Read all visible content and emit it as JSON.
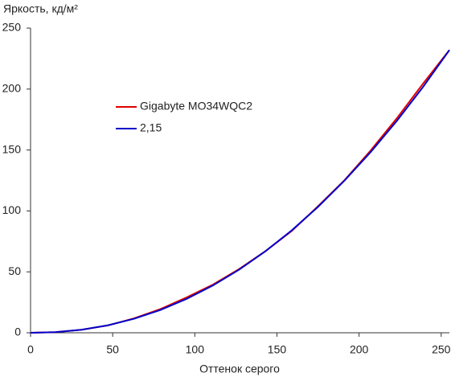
{
  "chart_data": {
    "type": "line",
    "xlabel": "Оттенок серого",
    "ylabel": "Яркость, кд/м²",
    "x": [
      0,
      15,
      31,
      47,
      63,
      79,
      95,
      111,
      127,
      143,
      159,
      175,
      191,
      207,
      223,
      239,
      255
    ],
    "series": [
      {
        "name": "Gigabyte MO34WQC2",
        "color": "#e00000",
        "values": [
          0,
          0.5,
          2.5,
          6.0,
          11.8,
          19.4,
          29.0,
          39.5,
          52.3,
          67.0,
          83.5,
          103.8,
          125.0,
          149.5,
          176.0,
          204.5,
          232
        ]
      },
      {
        "name": "2,15",
        "color": "#0000cc",
        "values": [
          0,
          0.52,
          2.5,
          6.1,
          11.5,
          18.7,
          27.8,
          38.8,
          51.8,
          66.9,
          84.0,
          103.3,
          124.7,
          148.2,
          173.9,
          201.8,
          232
        ]
      }
    ],
    "xlim": [
      0,
      255
    ],
    "ylim": [
      0,
      250
    ],
    "xticks": [
      0,
      50,
      100,
      150,
      200,
      250
    ],
    "yticks": [
      0,
      50,
      100,
      150,
      200,
      250
    ],
    "grid": false
  }
}
